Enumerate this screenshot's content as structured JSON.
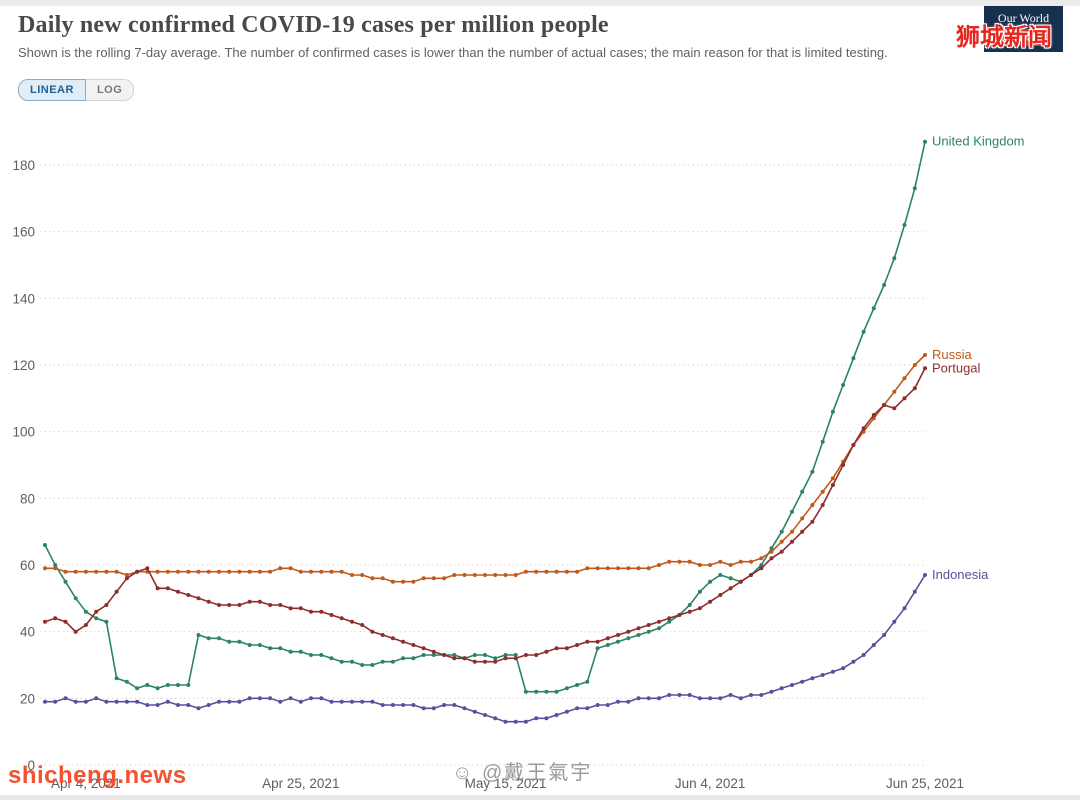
{
  "header": {
    "title": "Daily new confirmed COVID-19 cases per million people",
    "subtitle": "Shown is the rolling 7-day average. The number of confirmed cases is lower than the number of actual cases; the main reason for that is limited testing.",
    "scale_toggle": {
      "linear": "LINEAR",
      "log": "LOG",
      "active": "LINEAR"
    },
    "logo": {
      "line1": "Our World",
      "line2": "in Data",
      "bg": "#16304f",
      "accent": "#cf2015"
    }
  },
  "watermarks": {
    "top_right": "狮城新闻",
    "bottom_center_icon": "☺",
    "bottom_center": "@戴王氣宇",
    "bottom_left": "shicheng.news"
  },
  "chart_data": {
    "type": "line",
    "title": "Daily new confirmed COVID-19 cases per million people",
    "subtitle": "Shown is the rolling 7-day average. The number of confirmed cases is lower than the number of actual cases; the main reason for that is limited testing.",
    "grid": true,
    "legend_position": "right-end-labels",
    "ylim": [
      0,
      190
    ],
    "y_ticks": [
      0,
      20,
      40,
      60,
      80,
      100,
      120,
      140,
      160,
      180
    ],
    "x_tick_labels": [
      "Apr 4, 2021",
      "Apr 25, 2021",
      "May 15, 2021",
      "Jun 4, 2021",
      "Jun 25, 2021"
    ],
    "x_tick_days": [
      4,
      25,
      45,
      65,
      86
    ],
    "series": [
      {
        "name": "United Kingdom",
        "color": "#2b8465",
        "values": [
          66,
          60,
          55,
          50,
          46,
          44,
          43,
          26,
          25,
          23,
          24,
          23,
          24,
          24,
          24,
          39,
          38,
          38,
          37,
          37,
          36,
          36,
          35,
          35,
          34,
          34,
          33,
          33,
          32,
          31,
          31,
          30,
          30,
          31,
          31,
          32,
          32,
          33,
          33,
          33,
          33,
          32,
          33,
          33,
          32,
          33,
          33,
          22,
          22,
          22,
          22,
          23,
          24,
          25,
          35,
          36,
          37,
          38,
          39,
          40,
          41,
          43,
          45,
          48,
          52,
          55,
          57,
          56,
          55,
          57,
          60,
          65,
          70,
          76,
          82,
          88,
          97,
          106,
          114,
          122,
          130,
          137,
          144,
          152,
          162,
          173,
          187
        ]
      },
      {
        "name": "Russia",
        "color": "#c05a1b",
        "values": [
          59,
          59,
          58,
          58,
          58,
          58,
          58,
          58,
          57,
          58,
          58,
          58,
          58,
          58,
          58,
          58,
          58,
          58,
          58,
          58,
          58,
          58,
          58,
          59,
          59,
          58,
          58,
          58,
          58,
          58,
          57,
          57,
          56,
          56,
          55,
          55,
          55,
          56,
          56,
          56,
          57,
          57,
          57,
          57,
          57,
          57,
          57,
          58,
          58,
          58,
          58,
          58,
          58,
          59,
          59,
          59,
          59,
          59,
          59,
          59,
          60,
          61,
          61,
          61,
          60,
          60,
          61,
          60,
          61,
          61,
          62,
          64,
          67,
          70,
          74,
          78,
          82,
          86,
          91,
          96,
          100,
          104,
          108,
          112,
          116,
          120,
          123
        ]
      },
      {
        "name": "Portugal",
        "color": "#8e2d2c",
        "values": [
          43,
          44,
          43,
          40,
          42,
          46,
          48,
          52,
          56,
          58,
          59,
          53,
          53,
          52,
          51,
          50,
          49,
          48,
          48,
          48,
          49,
          49,
          48,
          48,
          47,
          47,
          46,
          46,
          45,
          44,
          43,
          42,
          40,
          39,
          38,
          37,
          36,
          35,
          34,
          33,
          32,
          32,
          31,
          31,
          31,
          32,
          32,
          33,
          33,
          34,
          35,
          35,
          36,
          37,
          37,
          38,
          39,
          40,
          41,
          42,
          43,
          44,
          45,
          46,
          47,
          49,
          51,
          53,
          55,
          57,
          59,
          62,
          64,
          67,
          70,
          73,
          78,
          84,
          90,
          96,
          101,
          105,
          108,
          107,
          110,
          113,
          119
        ]
      },
      {
        "name": "Indonesia",
        "color": "#57519c",
        "values": [
          19,
          19,
          20,
          19,
          19,
          20,
          19,
          19,
          19,
          19,
          18,
          18,
          19,
          18,
          18,
          17,
          18,
          19,
          19,
          19,
          20,
          20,
          20,
          19,
          20,
          19,
          20,
          20,
          19,
          19,
          19,
          19,
          19,
          18,
          18,
          18,
          18,
          17,
          17,
          18,
          18,
          17,
          16,
          15,
          14,
          13,
          13,
          13,
          14,
          14,
          15,
          16,
          17,
          17,
          18,
          18,
          19,
          19,
          20,
          20,
          20,
          21,
          21,
          21,
          20,
          20,
          20,
          21,
          20,
          21,
          21,
          22,
          23,
          24,
          25,
          26,
          27,
          28,
          29,
          31,
          33,
          36,
          39,
          43,
          47,
          52,
          57
        ]
      }
    ]
  }
}
